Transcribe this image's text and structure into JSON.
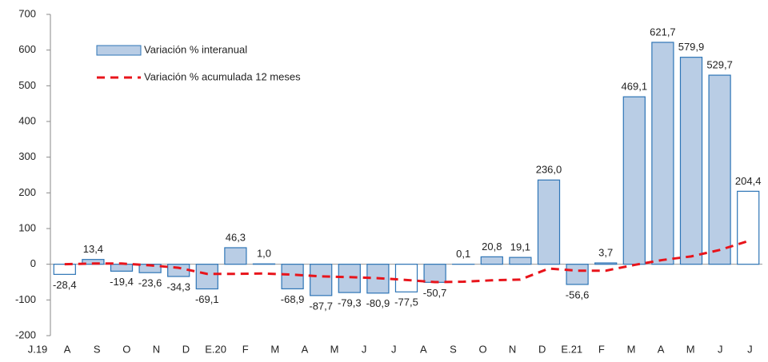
{
  "chart_data": {
    "type": "bar_line",
    "categories": [
      "J.19",
      "A",
      "S",
      "O",
      "N",
      "D",
      "E.20",
      "F",
      "M",
      "A",
      "M",
      "J",
      "J",
      "A",
      "S",
      "O",
      "N",
      "D",
      "E.21",
      "F",
      "M",
      "A",
      "M",
      "J",
      "J"
    ],
    "series": [
      {
        "name": "Variación % interanual",
        "type": "bar",
        "color": "#b9cde5",
        "edge_color": "#2e75b6",
        "colors": [
          "#ffffff",
          "#b9cde5",
          "#b9cde5",
          "#b9cde5",
          "#b9cde5",
          "#b9cde5",
          "#b9cde5",
          "#b9cde5",
          "#b9cde5",
          "#b9cde5",
          "#b9cde5",
          "#b9cde5",
          "#ffffff",
          "#b9cde5",
          "#b9cde5",
          "#b9cde5",
          "#b9cde5",
          "#b9cde5",
          "#b9cde5",
          "#b9cde5",
          "#b9cde5",
          "#b9cde5",
          "#b9cde5",
          "#b9cde5",
          "#ffffff"
        ],
        "values": [
          -28.4,
          13.4,
          -19.4,
          -23.6,
          -34.3,
          -69.1,
          46.3,
          1.0,
          -68.9,
          -87.7,
          -79.3,
          -80.9,
          -77.5,
          -50.7,
          0.1,
          20.8,
          19.1,
          236.0,
          -56.6,
          3.7,
          469.1,
          621.7,
          579.9,
          529.7,
          204.4
        ],
        "value_labels": [
          "-28,4",
          "13,4",
          "-19,4",
          "-23,6",
          "-34,3",
          "-69,1",
          "46,3",
          "1,0",
          "-68,9",
          "-87,7",
          "-79,3",
          "-80,9",
          "-77,5",
          "-50,7",
          "0,1",
          "20,8",
          "19,1",
          "236,0",
          "-56,6",
          "3,7",
          "469,1",
          "621,7",
          "579,9",
          "529,7",
          "204,4"
        ]
      },
      {
        "name": "Variación % acumulada 12 meses",
        "type": "line",
        "color": "#e8141b",
        "dashed": true,
        "values": [
          0,
          2,
          2,
          -3,
          -10,
          -27,
          -27,
          -26,
          -29,
          -34,
          -36,
          -39,
          -44,
          -50,
          -49,
          -45,
          -43,
          -12,
          -18,
          -18,
          -2,
          12,
          22,
          40,
          65
        ]
      }
    ],
    "ylim": [
      -200,
      700
    ],
    "yticks": [
      -200,
      -100,
      0,
      100,
      200,
      300,
      400,
      500,
      600,
      700
    ],
    "grid": false,
    "legend": "upper left"
  }
}
